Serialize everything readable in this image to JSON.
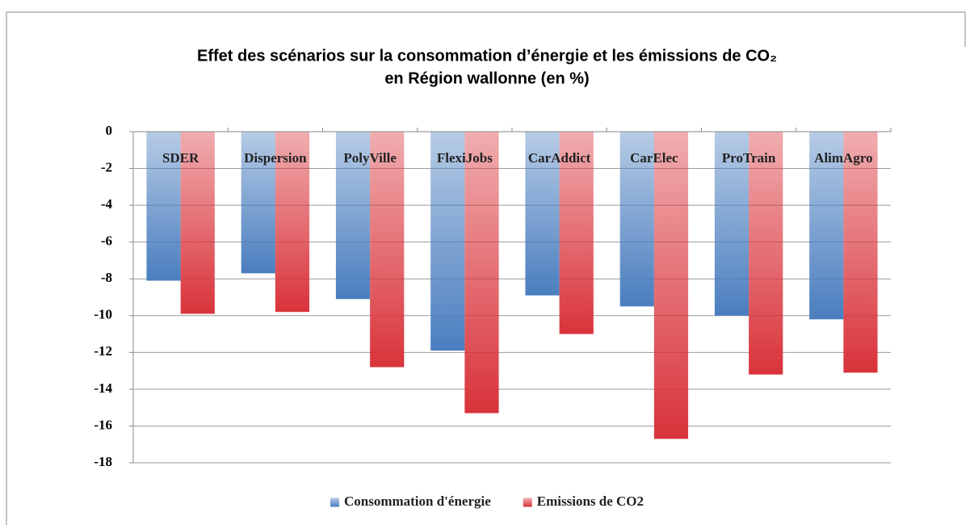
{
  "chart_data": {
    "type": "bar",
    "title": [
      "Effet des scénarios sur la consommation d’énergie et les émissions de CO₂",
      "en Région wallonne (en %)"
    ],
    "categories": [
      "SDER",
      "Dispersion",
      "PolyVille",
      "FlexiJobs",
      "CarAddict",
      "CarElec",
      "ProTrain",
      "AlimAgro"
    ],
    "series": [
      {
        "name": "Consommation d'énergie",
        "color": "#4a7ebf",
        "values": [
          -8.1,
          -7.7,
          -9.1,
          -11.9,
          -8.9,
          -9.5,
          -10.0,
          -10.2
        ]
      },
      {
        "name": "Emissions de CO2",
        "color": "#d9333a",
        "values": [
          -9.9,
          -9.8,
          -12.8,
          -15.3,
          -11.0,
          -16.7,
          -13.2,
          -13.1
        ]
      }
    ],
    "ylim": [
      -18,
      0
    ],
    "yticks": [
      0,
      -2,
      -4,
      -6,
      -8,
      -10,
      -12,
      -14,
      -16,
      -18
    ],
    "grid": true,
    "legend": "bottom"
  }
}
